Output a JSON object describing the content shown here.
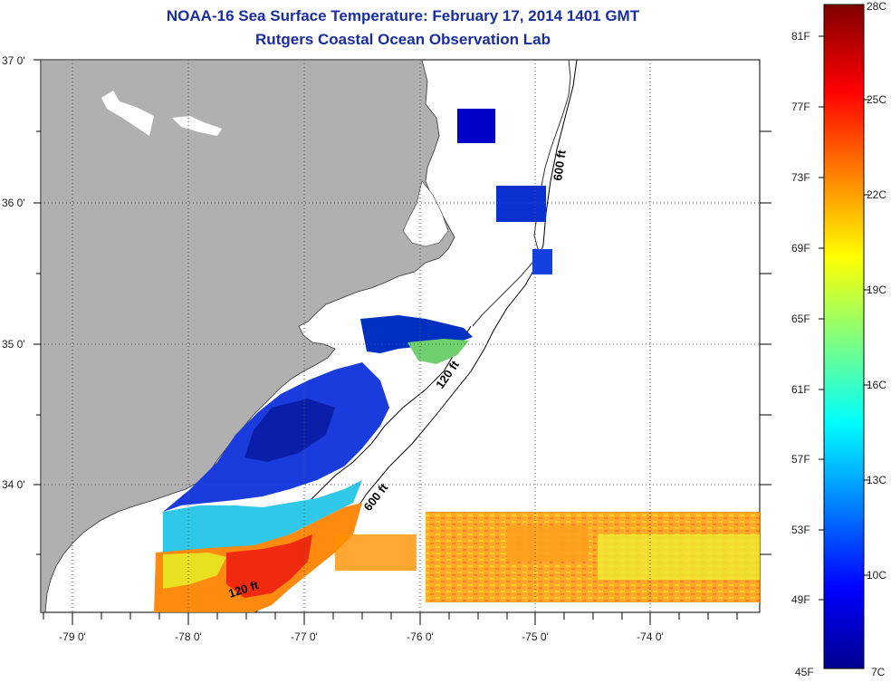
{
  "title": {
    "line1": "NOAA-16 Sea Surface Temperature:  February 17, 2014 1401 GMT",
    "line2": "Rutgers Coastal Ocean Observation Lab"
  },
  "map": {
    "latitude_labels": [
      "37 0'",
      "36 0'",
      "35 0'",
      "34 0'"
    ],
    "longitude_labels": [
      "-79 0'",
      "-78 0'",
      "-77 0'",
      "-76 0'",
      "-75 0'",
      "-74 0'"
    ],
    "contour_labels": {
      "c600_north": "600 ft",
      "c600_south": "600 ft",
      "c120_north": "120 ft",
      "c120_south": "120 ft"
    },
    "colors": {
      "land": "#b0b0b0",
      "ocean": "#ffffff",
      "grid": "#555555"
    }
  },
  "colorbar": {
    "fahrenheit_labels": [
      "81F",
      "77F",
      "73F",
      "69F",
      "65F",
      "61F",
      "57F",
      "53F",
      "49F",
      "45F"
    ],
    "celsius_labels": [
      "28C",
      "25C",
      "22C",
      "19C",
      "16C",
      "13C",
      "10C",
      "7C"
    ],
    "range_celsius": [
      7,
      28
    ],
    "colormap": "jet"
  }
}
